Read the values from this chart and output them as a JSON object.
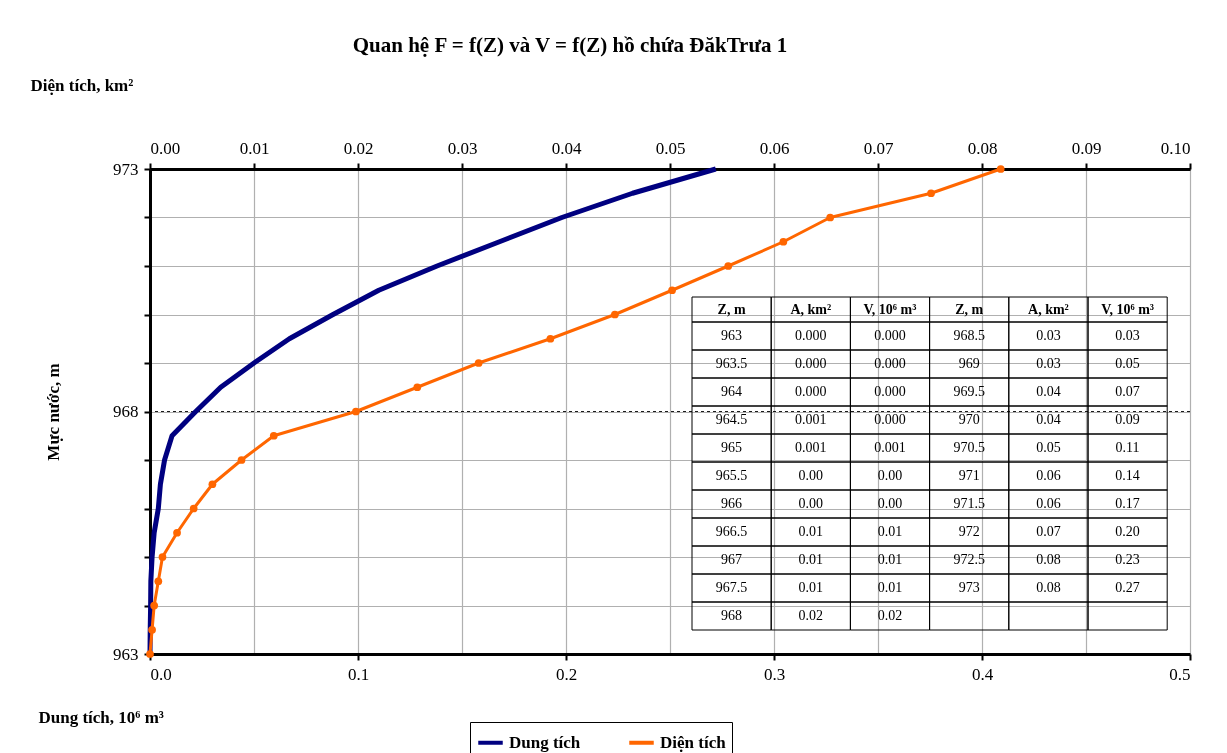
{
  "chart_data": {
    "type": "line",
    "title": "Quan hệ F = f(Z) và V = f(Z) hồ chứa ĐăkTrưa 1",
    "xlabel": "Dung tích, 10⁶ m³",
    "x2label": "Diện tích, km²",
    "ylabel": "Mực nước, m",
    "xlim": [
      0,
      0.5
    ],
    "xticks": [
      {
        "value": 0,
        "label": "0.0"
      },
      0.1,
      0.2,
      0.3,
      0.4,
      0.5
    ],
    "x2lim": [
      0,
      0.1
    ],
    "x2ticks": [
      {
        "value": 0,
        "label": "0.00"
      },
      0.01,
      0.02,
      0.03,
      0.04,
      0.05,
      0.06,
      0.07,
      0.08,
      0.09,
      {
        "value": 0.1,
        "label": "0.10"
      }
    ],
    "ylim": [
      963,
      973
    ],
    "yticks": [
      963,
      {
        "value": 964,
        "label": null
      },
      {
        "value": 965,
        "label": null
      },
      {
        "value": 966,
        "label": null
      },
      {
        "value": 967,
        "label": null
      },
      968,
      {
        "value": 969,
        "label": null
      },
      {
        "value": 970,
        "label": null
      },
      {
        "value": 971,
        "label": null
      },
      {
        "value": 972,
        "label": null
      },
      973
    ],
    "grid": true,
    "legend": "bottom",
    "ref_lines": [
      {
        "axis": "y",
        "value": 968,
        "color": "#000000",
        "line_style": "dashed"
      }
    ],
    "line_style": "solid",
    "annotations": [
      "Z, m",
      "A, km²",
      "V, 10⁶ m³",
      "Z, m",
      "A, km²",
      "V, 10⁶ m³",
      "963",
      "0.000",
      "0.000",
      "968.5",
      "0.03",
      "0.03",
      "963.5",
      "0.000",
      "0.000",
      "969",
      "0.03",
      "0.05",
      "964",
      "0.000",
      "0.000",
      "969.5",
      "0.04",
      "0.07",
      "964.5",
      "0.001",
      "0.000",
      "970",
      "0.04",
      "0.09",
      "965",
      "0.001",
      "0.001",
      "970.5",
      "0.05",
      "0.11",
      "965.5",
      "0.00",
      "0.00",
      "971",
      "0.06",
      "0.14",
      "966",
      "0.00",
      "0.00",
      "971.5",
      "0.06",
      "0.17",
      "966.5",
      "0.01",
      "0.01",
      "972",
      "0.07",
      "0.20",
      "967",
      "0.01",
      "0.01",
      "972.5",
      "0.08",
      "0.23",
      "967.5",
      "0.01",
      "0.01",
      "973",
      "0.08",
      "0.27",
      "968",
      "0.02",
      "0.02"
    ],
    "series": [
      {
        "name": "Dung tích",
        "color": "#000080",
        "marker": "none",
        "x": [
          0,
          0.0001,
          0.0003,
          0.0004,
          0.001,
          0.002,
          0.004,
          0.005,
          0.007,
          0.0106,
          0.022,
          0.034,
          0.05,
          0.067,
          0.088,
          0.11,
          0.138,
          0.168,
          0.198,
          0.232,
          0.272
        ],
        "values": [
          963,
          963.5,
          964,
          964.5,
          965,
          965.5,
          966,
          966.5,
          967,
          967.5,
          968,
          968.5,
          969,
          969.5,
          970,
          970.5,
          971,
          971.5,
          972,
          972.5,
          973
        ]
      },
      {
        "name": "Diện tích",
        "color": "#ff6600",
        "marker": "circle",
        "axis": "x2",
        "x": [
          0,
          0.0002,
          0.0004,
          0.0008,
          0.0012,
          0.0026,
          0.0042,
          0.006,
          0.0088,
          0.0119,
          0.0198,
          0.0257,
          0.0316,
          0.0385,
          0.0447,
          0.0502,
          0.0556,
          0.0609,
          0.0654,
          0.0751,
          0.0818
        ],
        "values": [
          963,
          963.5,
          964,
          964.5,
          965,
          965.5,
          966,
          966.5,
          967,
          967.5,
          968,
          968.5,
          969,
          969.5,
          970,
          970.5,
          971,
          971.5,
          972,
          972.5,
          973
        ]
      }
    ]
  }
}
